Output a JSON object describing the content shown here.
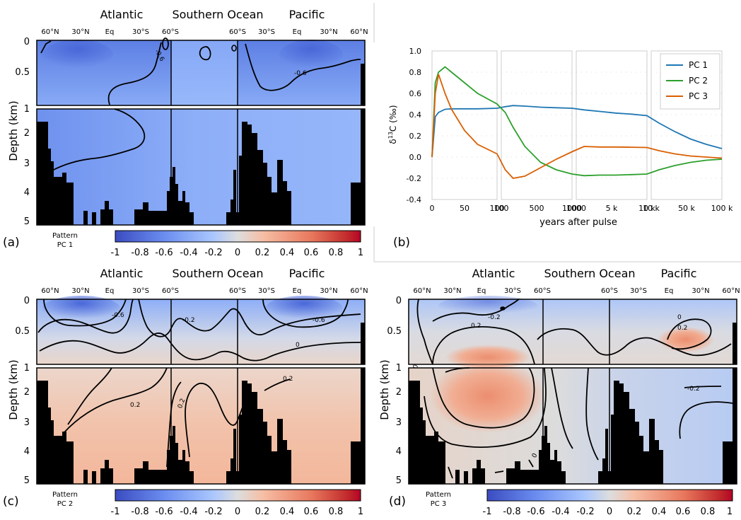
{
  "chart_data": [
    {
      "type": "heatmap",
      "panel": "(a)",
      "pattern_label": "Pattern",
      "pc_label": "PC 1",
      "ylabel": "Depth (km)",
      "basin_labels": [
        "Atlantic",
        "Southern Ocean",
        "Pacific"
      ],
      "lat_ticks": [
        "60°N",
        "30°N",
        "Eq",
        "30°S",
        "60°S",
        "60°S",
        "30°S",
        "Eq",
        "30°N",
        "60°N"
      ],
      "depth_ticks": [
        0,
        0.5,
        1,
        2,
        3,
        4,
        5
      ],
      "colorbar": {
        "min": -1,
        "max": 1,
        "ticks": [
          "-1",
          "-0.8",
          "-0.6",
          "-0.4",
          "-0.2",
          "0",
          "0.2",
          "0.4",
          "0.6",
          "0.8",
          "1"
        ]
      },
      "contour_labels": [
        "-0.6",
        "-0.6"
      ]
    },
    {
      "type": "line",
      "panel": "(b)",
      "xlabel": "years after pulse",
      "ylabel": "δ13C (‰)",
      "ylim": [
        -0.4,
        1.0
      ],
      "yticks": [
        "1.0",
        "0.8",
        "0.6",
        "0.4",
        "0.2",
        "0.0",
        "-0.2",
        "-0.4"
      ],
      "x_segments": [
        {
          "range": [
            0,
            100
          ],
          "ticks": [
            "0",
            "50",
            "100"
          ]
        },
        {
          "range": [
            100,
            1000
          ],
          "ticks": [
            "100",
            "500",
            "1000"
          ]
        },
        {
          "range": [
            1000,
            10000
          ],
          "ticks": [
            "1000",
            "5 k",
            "10 k"
          ]
        },
        {
          "range": [
            10000,
            100000
          ],
          "ticks": [
            "10 k",
            "50 k",
            "100 k"
          ]
        }
      ],
      "legend_position": "top-right",
      "series": [
        {
          "name": "PC 1",
          "color": "#1f77b4",
          "x": [
            0,
            5,
            10,
            20,
            30,
            50,
            70,
            100,
            150,
            250,
            400,
            600,
            800,
            1000,
            2000,
            4000,
            6000,
            8000,
            10000,
            20000,
            40000,
            60000,
            80000,
            100000
          ],
          "y": [
            0.0,
            0.38,
            0.42,
            0.45,
            0.455,
            0.455,
            0.455,
            0.46,
            0.475,
            0.485,
            0.48,
            0.47,
            0.465,
            0.46,
            0.445,
            0.43,
            0.415,
            0.405,
            0.39,
            0.32,
            0.24,
            0.17,
            0.12,
            0.08
          ]
        },
        {
          "name": "PC 2",
          "color": "#2ca02c",
          "x": [
            0,
            5,
            10,
            20,
            30,
            50,
            70,
            100,
            150,
            250,
            400,
            600,
            800,
            1000,
            2000,
            4000,
            6000,
            8000,
            10000,
            20000,
            40000,
            60000,
            80000,
            100000
          ],
          "y": [
            0.0,
            0.7,
            0.8,
            0.85,
            0.8,
            0.7,
            0.6,
            0.5,
            0.42,
            0.28,
            0.1,
            -0.05,
            -0.12,
            -0.16,
            -0.175,
            -0.17,
            -0.17,
            -0.165,
            -0.16,
            -0.12,
            -0.08,
            -0.05,
            -0.03,
            -0.02
          ]
        },
        {
          "name": "PC 3",
          "color": "#d95f02",
          "x": [
            0,
            5,
            10,
            20,
            30,
            50,
            70,
            100,
            150,
            250,
            400,
            600,
            800,
            1000,
            2000,
            4000,
            6000,
            8000,
            10000,
            20000,
            40000,
            60000,
            80000,
            100000
          ],
          "y": [
            0.0,
            0.6,
            0.78,
            0.6,
            0.45,
            0.25,
            0.12,
            0.03,
            -0.12,
            -0.2,
            -0.18,
            -0.1,
            -0.02,
            0.05,
            0.1,
            0.095,
            0.095,
            0.093,
            0.09,
            0.06,
            0.03,
            0.01,
            0.0,
            -0.01
          ]
        }
      ]
    },
    {
      "type": "heatmap",
      "panel": "(c)",
      "pattern_label": "Pattern",
      "pc_label": "PC 2",
      "ylabel": "Depth (km)",
      "basin_labels": [
        "Atlantic",
        "Southern Ocean",
        "Pacific"
      ],
      "lat_ticks": [
        "60°N",
        "30°N",
        "Eq",
        "30°S",
        "60°S",
        "60°S",
        "30°S",
        "Eq",
        "30°N",
        "60°N"
      ],
      "depth_ticks": [
        0,
        0.5,
        1,
        2,
        3,
        4,
        5
      ],
      "colorbar": {
        "min": -1,
        "max": 1,
        "ticks": [
          "-1",
          "-0.8",
          "-0.6",
          "-0.4",
          "-0.2",
          "0",
          "0.2",
          "0.4",
          "0.6",
          "0.8",
          "1"
        ]
      },
      "contour_labels": [
        "-0.6",
        "-0.2",
        "-0.6",
        "0",
        "0.2",
        "0.2",
        "0.2"
      ]
    },
    {
      "type": "heatmap",
      "panel": "(d)",
      "pattern_label": "Pattern",
      "pc_label": "PC 3",
      "ylabel": "Depth (km)",
      "basin_labels": [
        "Atlantic",
        "Southern Ocean",
        "Pacific"
      ],
      "lat_ticks": [
        "60°N",
        "30°N",
        "Eq",
        "30°S",
        "60°S",
        "60°S",
        "30°S",
        "Eq",
        "30°N",
        "60°N"
      ],
      "depth_ticks": [
        0,
        0.5,
        1,
        2,
        3,
        4,
        5
      ],
      "colorbar": {
        "min": -1,
        "max": 1,
        "ticks": [
          "-1",
          "-0.8",
          "-0.6",
          "-0.4",
          "-0.2",
          "0",
          "0.2",
          "0.4",
          "0.6",
          "0.8",
          "1"
        ]
      },
      "contour_labels": [
        "-0.2",
        "0.2",
        "0",
        "0.2",
        "0",
        "-0.2",
        "0",
        "0"
      ]
    }
  ]
}
